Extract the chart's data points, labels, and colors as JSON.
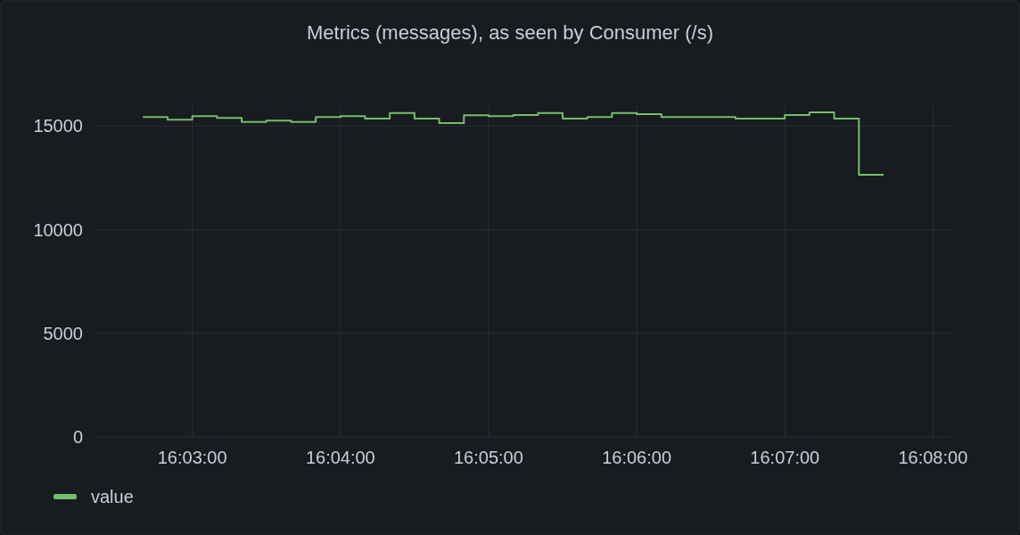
{
  "chart_data": {
    "type": "step",
    "title": "Metrics (messages), as seen by Consumer (/s)",
    "x": [
      16.04444,
      16.04722,
      16.05,
      16.05278,
      16.05556,
      16.05833,
      16.06111,
      16.06389,
      16.06667,
      16.06944,
      16.07222,
      16.075,
      16.07778,
      16.08056,
      16.08333,
      16.08611,
      16.08889,
      16.09167,
      16.09444,
      16.09722,
      16.1,
      16.10278,
      16.10556,
      16.10833,
      16.11111,
      16.11389,
      16.11667,
      16.11944,
      16.12222,
      16.125,
      16.12778
    ],
    "series": [
      {
        "name": "value",
        "color": "#73bf69",
        "values": [
          15430,
          15300,
          15470,
          15390,
          15190,
          15260,
          15190,
          15430,
          15470,
          15360,
          15620,
          15360,
          15140,
          15520,
          15470,
          15530,
          15620,
          15360,
          15430,
          15620,
          15570,
          15430,
          15430,
          15430,
          15360,
          15360,
          15530,
          15660,
          15360,
          12640,
          12640
        ]
      }
    ],
    "xlim": [
      16.0389,
      16.1353
    ],
    "xticks": [
      {
        "value": 16.05,
        "label": "16:03:00"
      },
      {
        "value": 16.06667,
        "label": "16:04:00"
      },
      {
        "value": 16.08333,
        "label": "16:05:00"
      },
      {
        "value": 16.1,
        "label": "16:06:00"
      },
      {
        "value": 16.11667,
        "label": "16:07:00"
      },
      {
        "value": 16.13333,
        "label": "16:08:00"
      }
    ],
    "ylim": [
      0,
      16000
    ],
    "yticks": [
      0,
      5000,
      10000,
      15000
    ],
    "grid": true,
    "legend": "bottom left",
    "marker": "none",
    "line_style": "solid"
  }
}
